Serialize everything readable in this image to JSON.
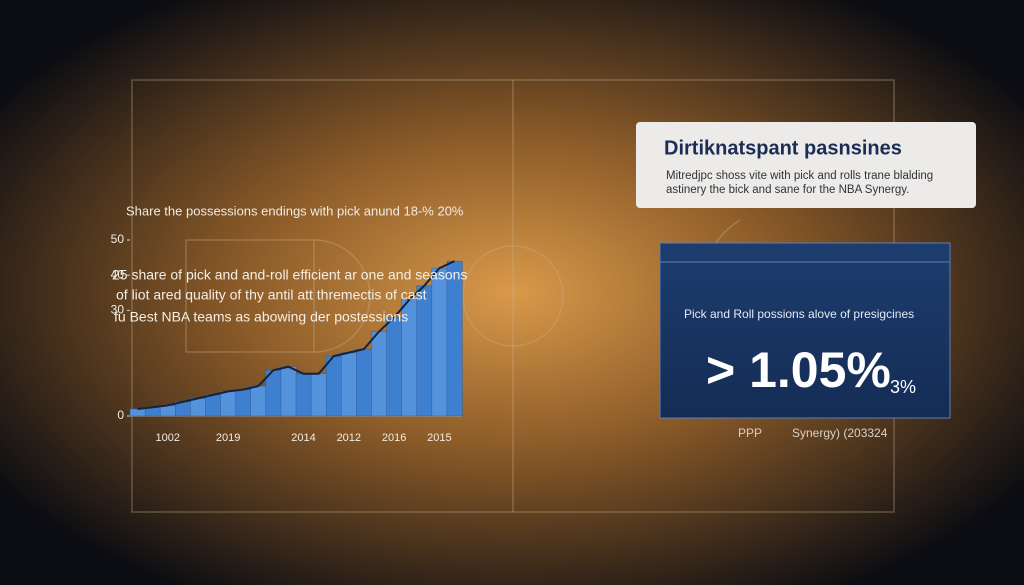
{
  "chart_data": {
    "type": "area",
    "title": "Share the possessions endings with pick anund 18-% 20%",
    "annotations": [
      "25 share of pick and and-roll efficient ar one and seasons",
      "of liot ared quality of thy antil att thremectis of cast",
      "fu Best NBA teams as abowing der postessions"
    ],
    "categories": [
      null,
      null,
      "1002",
      null,
      null,
      null,
      "2019",
      null,
      null,
      null,
      null,
      "2014",
      null,
      null,
      "2012",
      null,
      null,
      "2016",
      null,
      null,
      "2015",
      null
    ],
    "values": [
      2,
      2.5,
      3,
      4,
      5,
      6,
      7,
      7.5,
      8.5,
      13,
      14,
      12,
      12,
      17,
      18,
      19,
      24,
      28,
      33,
      37,
      42,
      44
    ],
    "color": "#3f7fd0",
    "ylim": [
      0,
      50
    ],
    "yticks": [
      0,
      30,
      40,
      50
    ]
  },
  "card": {
    "title": "Dirtiknatspant pasnsines",
    "lines": [
      "Mitredjpc shoss vite with pick and rolls trane blalding",
      "astinery the bick and sane for the NBA Synergy."
    ]
  },
  "panel": {
    "caption": "Pick and Roll possions alove of presigcines",
    "stat": "> 1.05%",
    "stat_note": "3%",
    "footer": [
      "PPP",
      "Synergy) (203324"
    ]
  }
}
